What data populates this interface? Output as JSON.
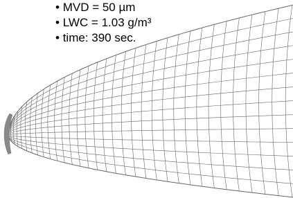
{
  "notes": [
    "MVD = 50 µm",
    "LWC = 1.03 g/m³",
    "time: 390 sec."
  ]
}
